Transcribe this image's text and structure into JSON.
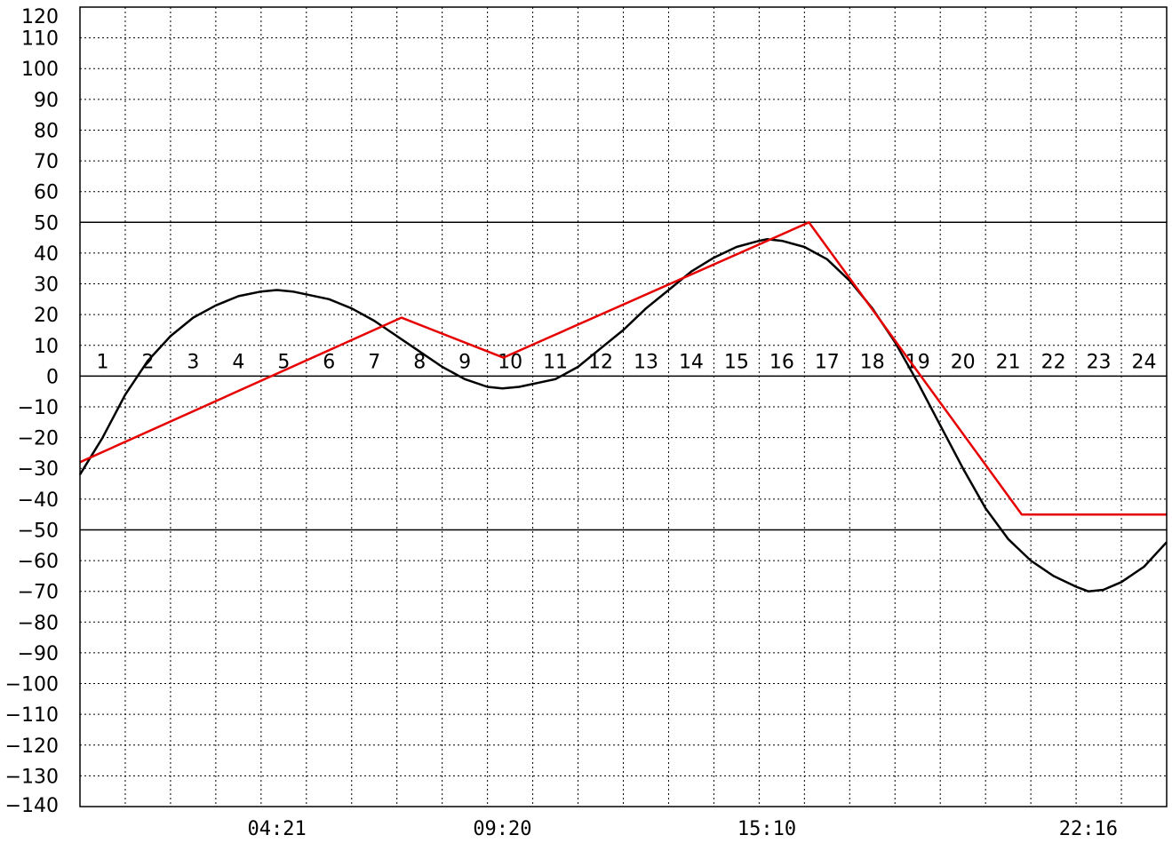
{
  "chart_data": {
    "type": "line",
    "title": "",
    "xlabel": "",
    "ylabel": "",
    "xlim": [
      0,
      24
    ],
    "ylim": [
      -140,
      120
    ],
    "ytick_step": 10,
    "yticks": [
      120,
      110,
      100,
      90,
      80,
      70,
      60,
      50,
      40,
      30,
      20,
      10,
      0,
      -10,
      -20,
      -30,
      -40,
      -50,
      -60,
      -70,
      -80,
      -90,
      -100,
      -110,
      -120,
      -130,
      -140
    ],
    "ytick_labels": [
      "120",
      "110",
      "100",
      "90",
      "80",
      "70",
      "60",
      "50",
      "40",
      "30",
      "20",
      "10",
      "0",
      "−10",
      "−20",
      "−30",
      "−40",
      "−50",
      "−60",
      "−70",
      "−80",
      "−90",
      "−100",
      "−110",
      "−120",
      "−130",
      "−140"
    ],
    "hour_labels": [
      "1",
      "2",
      "3",
      "4",
      "5",
      "6",
      "7",
      "8",
      "9",
      "10",
      "11",
      "12",
      "13",
      "14",
      "15",
      "16",
      "17",
      "18",
      "19",
      "20",
      "21",
      "22",
      "23",
      "24"
    ],
    "time_labels": [
      {
        "x": 4.35,
        "label": "04:21"
      },
      {
        "x": 9.33,
        "label": "09:20"
      },
      {
        "x": 15.17,
        "label": "15:10"
      },
      {
        "x": 22.27,
        "label": "22:16"
      }
    ],
    "reference_lines": [
      50,
      0,
      -50
    ],
    "grid": true,
    "series": [
      {
        "color": "#000000",
        "points": [
          [
            0,
            -32
          ],
          [
            0.5,
            -20
          ],
          [
            1,
            -6
          ],
          [
            1.5,
            5
          ],
          [
            2,
            13
          ],
          [
            2.5,
            19
          ],
          [
            3,
            23
          ],
          [
            3.5,
            26
          ],
          [
            4,
            27.5
          ],
          [
            4.35,
            28
          ],
          [
            4.7,
            27.5
          ],
          [
            5.5,
            25
          ],
          [
            6,
            22
          ],
          [
            6.5,
            18
          ],
          [
            7,
            13
          ],
          [
            7.5,
            8
          ],
          [
            8,
            3
          ],
          [
            8.5,
            -1
          ],
          [
            9,
            -3.5
          ],
          [
            9.33,
            -4
          ],
          [
            9.7,
            -3.5
          ],
          [
            10.5,
            -1
          ],
          [
            11,
            3
          ],
          [
            11.5,
            9
          ],
          [
            12,
            15
          ],
          [
            12.5,
            22
          ],
          [
            13,
            28
          ],
          [
            13.5,
            34
          ],
          [
            14,
            38.5
          ],
          [
            14.5,
            42
          ],
          [
            15,
            44
          ],
          [
            15.17,
            44.5
          ],
          [
            15.5,
            44
          ],
          [
            16,
            42
          ],
          [
            16.5,
            38
          ],
          [
            17,
            31
          ],
          [
            17.5,
            22
          ],
          [
            18,
            11
          ],
          [
            18.5,
            -2
          ],
          [
            19,
            -16
          ],
          [
            19.5,
            -30
          ],
          [
            20,
            -43
          ],
          [
            20.5,
            -53
          ],
          [
            21,
            -60
          ],
          [
            21.5,
            -65
          ],
          [
            22,
            -68.5
          ],
          [
            22.27,
            -70
          ],
          [
            22.6,
            -69.5
          ],
          [
            23,
            -67
          ],
          [
            23.5,
            -62
          ],
          [
            24,
            -54
          ]
        ]
      },
      {
        "color": "#e60000",
        "points": [
          [
            0,
            -28
          ],
          [
            7.1,
            19
          ],
          [
            9.35,
            6
          ],
          [
            16.1,
            50
          ],
          [
            20.8,
            -45
          ],
          [
            24,
            -45
          ]
        ]
      }
    ]
  }
}
